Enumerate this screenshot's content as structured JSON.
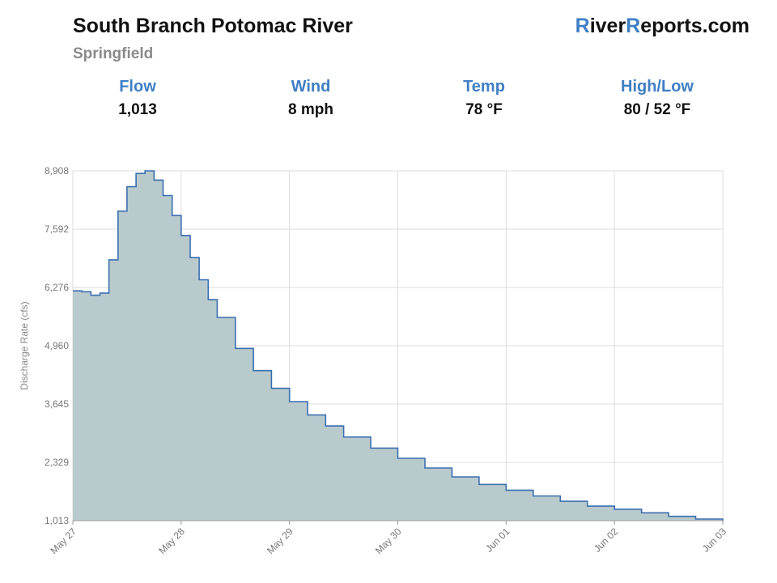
{
  "header": {
    "title": "South Branch Potomac River",
    "subtitle": "Springfield",
    "brand_r1": "R",
    "brand_mid1": "iver",
    "brand_r2": "R",
    "brand_mid2": "eports.com"
  },
  "stats": [
    {
      "label": "Flow",
      "value": "1,013"
    },
    {
      "label": "Wind",
      "value": "8 mph"
    },
    {
      "label": "Temp",
      "value": "78 °F"
    },
    {
      "label": "High/Low",
      "value": "80 / 52 °F"
    }
  ],
  "colors": {
    "accent": "#3f7fc4",
    "line": "#3a6fb0",
    "fill": "#b9cacd",
    "grid": "#dddddd"
  },
  "chart_data": {
    "type": "area",
    "step": true,
    "ylabel": "Discharge Rate (cfs)",
    "ylim": [
      1013,
      8908
    ],
    "yticks": [
      1013,
      2329,
      3645,
      4960,
      6276,
      7592,
      8908
    ],
    "ytick_labels": [
      "1,013",
      "2,329",
      "3,645",
      "4,960",
      "6,276",
      "7,592",
      "8,908"
    ],
    "xlim": [
      0,
      144
    ],
    "xticks": [
      0,
      24,
      48,
      72,
      96,
      120,
      144
    ],
    "xtick_labels": [
      "May 27",
      "May 28",
      "May 29",
      "May 30",
      "Jun 01",
      "Jun 02",
      "Jun 03"
    ],
    "grid": true,
    "x": [
      0,
      2,
      4,
      6,
      8,
      10,
      12,
      14,
      16,
      18,
      20,
      22,
      24,
      26,
      28,
      30,
      32,
      36,
      40,
      44,
      48,
      52,
      56,
      60,
      66,
      72,
      78,
      84,
      90,
      96,
      102,
      108,
      114,
      120,
      126,
      132,
      138,
      144
    ],
    "y": [
      6200,
      6180,
      6100,
      6150,
      6900,
      8000,
      8550,
      8850,
      8908,
      8700,
      8350,
      7900,
      7450,
      6950,
      6450,
      6000,
      5600,
      4900,
      4400,
      4000,
      3700,
      3400,
      3150,
      2900,
      2650,
      2420,
      2200,
      2000,
      1830,
      1700,
      1570,
      1450,
      1340,
      1270,
      1190,
      1110,
      1050,
      1013
    ]
  }
}
